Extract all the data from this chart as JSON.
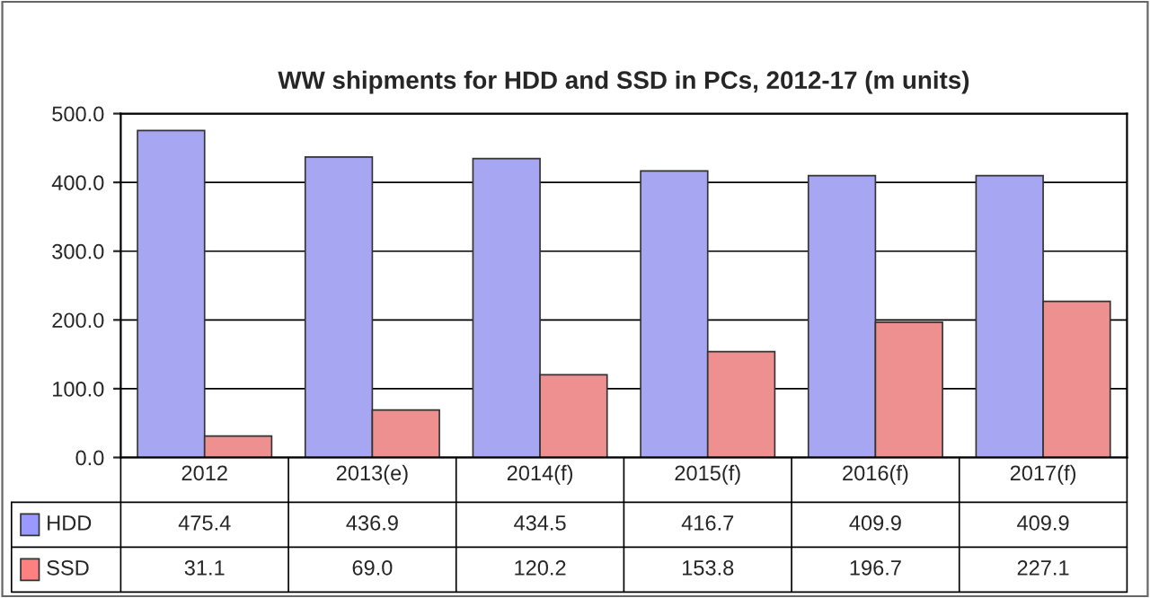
{
  "chart_data": {
    "type": "bar",
    "title": "WW shipments for HDD and SSD in PCs, 2012-17 (m units)",
    "categories": [
      "2012",
      "2013(e)",
      "2014(f)",
      "2015(f)",
      "2016(f)",
      "2017(f)"
    ],
    "series": [
      {
        "name": "HDD",
        "color": "#9999ff",
        "values": [
          475.4,
          436.9,
          434.5,
          416.7,
          409.9,
          409.9
        ],
        "value_labels": [
          "475.4",
          "436.9",
          "434.5",
          "416.7",
          "409.9",
          "409.9"
        ]
      },
      {
        "name": "SSD",
        "color": "#ff8080",
        "values": [
          31.1,
          69.0,
          120.2,
          153.8,
          196.7,
          227.1
        ],
        "value_labels": [
          "31.1",
          "69.0",
          "120.2",
          "153.8",
          "196.7",
          "227.1"
        ]
      }
    ],
    "ylim": [
      0,
      500
    ],
    "yticks": [
      {
        "value": 0,
        "label": "0.0"
      },
      {
        "value": 100,
        "label": "100.0"
      },
      {
        "value": 200,
        "label": "200.0"
      },
      {
        "value": 300,
        "label": "300.0"
      },
      {
        "value": 400,
        "label": "400.0"
      },
      {
        "value": 500,
        "label": "500.0"
      }
    ],
    "grid": "y",
    "legend": "bottom"
  }
}
